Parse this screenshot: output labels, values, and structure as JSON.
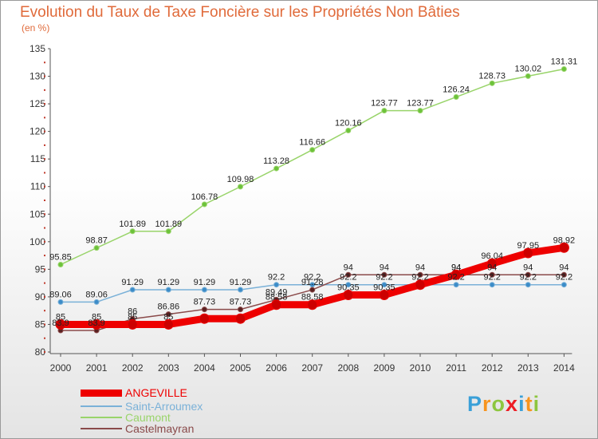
{
  "title": "Evolution du Taux de Taxe Foncière sur les Propriétés Non Bâties",
  "unit_label": "(en %)",
  "logo": {
    "text": "Proxiti",
    "letters": [
      "P",
      "r",
      "o",
      "x",
      "i",
      "t",
      "i"
    ],
    "colors": [
      "#3aa0d8",
      "#f7941e",
      "#8dc63f",
      "#ed1c24",
      "#3aa0d8",
      "#f7941e",
      "#8dc63f"
    ]
  },
  "chart_data": {
    "type": "line",
    "x": [
      2000,
      2001,
      2002,
      2003,
      2004,
      2005,
      2006,
      2007,
      2008,
      2009,
      2010,
      2011,
      2012,
      2013,
      2014
    ],
    "ylim": [
      80,
      135
    ],
    "yticks": [
      80,
      85,
      90,
      95,
      100,
      105,
      110,
      115,
      120,
      125,
      130,
      135
    ],
    "grid": false,
    "legend_position": "bottom-left",
    "series": [
      {
        "name": "Caumont",
        "color": "#99d46a",
        "marker": "#6cc23a",
        "line_width": 1.5,
        "values": [
          95.85,
          98.87,
          101.89,
          101.89,
          106.78,
          109.98,
          113.28,
          116.66,
          120.16,
          123.77,
          123.77,
          126.24,
          128.73,
          130.02,
          131.31
        ],
        "labels": [
          "95.85",
          "98.87",
          "101.89",
          "101.89",
          "106.78",
          "109.98",
          "113.28",
          "116.66",
          "120.16",
          "123.77",
          "123.77",
          "126.24",
          "128.73",
          "130.02",
          "131.31"
        ]
      },
      {
        "name": "Saint-Arroumex",
        "color": "#7ab1d8",
        "marker": "#3c8cc8",
        "line_width": 1.5,
        "values": [
          89.06,
          89.06,
          91.29,
          91.29,
          91.29,
          91.29,
          92.2,
          92.2,
          92.2,
          92.2,
          92.2,
          92.2,
          92.2,
          92.2,
          92.2
        ],
        "labels": [
          "89.06",
          "89.06",
          "91.29",
          "91.29",
          "91.29",
          "91.29",
          "92.2",
          "92.2",
          "92.2",
          "92.2",
          "92.2",
          "92.2",
          "92.2",
          "92.2",
          "92.2"
        ]
      },
      {
        "name": "Castelmayran",
        "color": "#8a4a4a",
        "marker": "#5c2020",
        "line_width": 1.5,
        "values": [
          83.9,
          83.9,
          86,
          86.86,
          87.73,
          87.73,
          89.49,
          91.28,
          94,
          94,
          94,
          94,
          94,
          94,
          94
        ],
        "labels": [
          "83.9",
          "83.9",
          "86",
          "86.86",
          "87.73",
          "87.73",
          "89.49",
          "91.28",
          "94",
          "94",
          "94",
          "94",
          "94",
          "94",
          "94"
        ]
      },
      {
        "name": "ANGEVILLE",
        "color": "#ee0000",
        "marker": "#cc0000",
        "line_width": 9,
        "values": [
          85,
          85,
          85,
          85,
          86.05,
          86.05,
          88.58,
          88.58,
          90.35,
          90.35,
          92.2,
          94,
          96.04,
          97.95,
          98.92
        ],
        "labels": [
          "85",
          "85",
          "85",
          "85",
          "",
          "",
          "88.58",
          "88.58",
          "90.35",
          "90.35",
          "",
          "94",
          "96.04",
          "97.95",
          "98.92"
        ]
      }
    ],
    "legend_order": [
      "ANGEVILLE",
      "Saint-Arroumex",
      "Caumont",
      "Castelmayran"
    ]
  }
}
